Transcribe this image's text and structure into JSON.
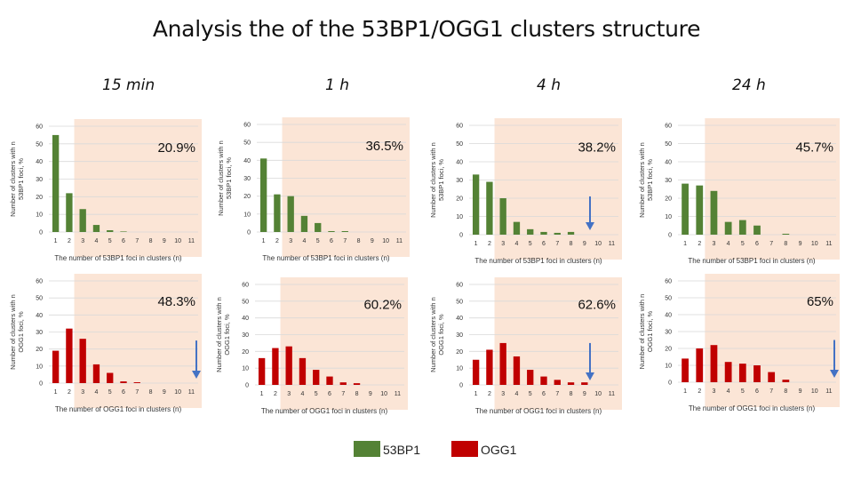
{
  "title": "Analysis the of the 53BP1/OGG1 clusters structure",
  "time_labels": [
    "15 min",
    "1 h",
    "4 h",
    "24 h"
  ],
  "legend": {
    "green": "53BP1",
    "red": "OGG1"
  },
  "colors": {
    "green": "#548235",
    "red": "#c00000",
    "shade": "#fbe5d6",
    "grid": "#d9d9d9",
    "arrow": "#4472c4"
  },
  "chart_data": [
    {
      "type": "bar",
      "series": "53BP1",
      "time": "15 min",
      "categories": [
        "1",
        "2",
        "3",
        "4",
        "5",
        "6",
        "7",
        "8",
        "9",
        "10",
        "11"
      ],
      "values": [
        55,
        22,
        13,
        4,
        1,
        0.3,
        0,
        0,
        0,
        0,
        0
      ],
      "ylabel": "Number of clusters with n 53BP1 foci, %",
      "xlabel": "The number of 53BP1 foci in clusters (n)",
      "yticks": [
        0,
        10,
        20,
        30,
        40,
        50,
        60
      ],
      "ylim": [
        0,
        60
      ],
      "shaded_from": "3",
      "annotation": "20.9%",
      "arrow": false
    },
    {
      "type": "bar",
      "series": "53BP1",
      "time": "1 h",
      "categories": [
        "1",
        "2",
        "3",
        "4",
        "5",
        "6",
        "7",
        "8",
        "9",
        "10",
        "11"
      ],
      "values": [
        41,
        21,
        20,
        9,
        5,
        0.5,
        0.5,
        0,
        0,
        0,
        0
      ],
      "ylabel": "Number of clusters with n 53BP1 foci, %",
      "xlabel": "The number of 53BP1 foci in clusters (n)",
      "yticks": [
        0,
        10,
        20,
        30,
        40,
        50,
        60
      ],
      "ylim": [
        0,
        60
      ],
      "shaded_from": "3",
      "annotation": "36.5%",
      "arrow": false
    },
    {
      "type": "bar",
      "series": "53BP1",
      "time": "4 h",
      "categories": [
        "1",
        "2",
        "3",
        "4",
        "5",
        "6",
        "7",
        "8",
        "9",
        "10",
        "11"
      ],
      "values": [
        33,
        29,
        20,
        7,
        3,
        1.5,
        1,
        1.5,
        0,
        0,
        0
      ],
      "ylabel": "Number of clusters with n 53BP1 foci, %",
      "xlabel": "The number of 53BP1 foci in clusters (n)",
      "yticks": [
        0,
        10,
        20,
        30,
        40,
        50,
        60
      ],
      "ylim": [
        0,
        60
      ],
      "shaded_from": "3",
      "annotation": "38.2%",
      "arrow": true
    },
    {
      "type": "bar",
      "series": "53BP1",
      "time": "24 h",
      "categories": [
        "1",
        "2",
        "3",
        "4",
        "5",
        "6",
        "7",
        "8",
        "9",
        "10",
        "11"
      ],
      "values": [
        28,
        27,
        24,
        7,
        8,
        5,
        0,
        0.5,
        0,
        0,
        0
      ],
      "ylabel": "Number of clusters with n 53BP1 foci, %",
      "xlabel": "The number of 53BP1 foci in clusters (n)",
      "yticks": [
        0,
        10,
        20,
        30,
        40,
        50,
        60
      ],
      "ylim": [
        0,
        60
      ],
      "shaded_from": "3",
      "annotation": "45.7%",
      "arrow": false
    },
    {
      "type": "bar",
      "series": "OGG1",
      "time": "15 min",
      "categories": [
        "1",
        "2",
        "3",
        "4",
        "5",
        "6",
        "7",
        "8",
        "9",
        "10",
        "11"
      ],
      "values": [
        19,
        32,
        26,
        11,
        6,
        1,
        0.5,
        0,
        0,
        0,
        0
      ],
      "ylabel": "Number of clusters with n OGG1 foci, %",
      "xlabel": "The number of OGG1 foci in clusters (n)",
      "yticks": [
        0,
        10,
        20,
        30,
        40,
        50,
        60
      ],
      "ylim": [
        0,
        60
      ],
      "shaded_from": "3",
      "annotation": "48.3%",
      "arrow": true
    },
    {
      "type": "bar",
      "series": "OGG1",
      "time": "1 h",
      "categories": [
        "1",
        "2",
        "3",
        "4",
        "5",
        "6",
        "7",
        "8",
        "9",
        "10",
        "11"
      ],
      "values": [
        16,
        22,
        23,
        16,
        9,
        5,
        1.5,
        1,
        0,
        0,
        0
      ],
      "ylabel": "Number of clusters with n OGG1 foci, %",
      "xlabel": "The number of OGG1 foci in clusters (n)",
      "yticks": [
        0,
        10,
        20,
        30,
        40,
        50,
        60
      ],
      "ylim": [
        0,
        60
      ],
      "shaded_from": "3",
      "annotation": "60.2%",
      "arrow": false
    },
    {
      "type": "bar",
      "series": "OGG1",
      "time": "4 h",
      "categories": [
        "1",
        "2",
        "3",
        "4",
        "5",
        "6",
        "7",
        "8",
        "9",
        "10",
        "11"
      ],
      "values": [
        15,
        21,
        25,
        17,
        9,
        5,
        3,
        1.5,
        1.5,
        0,
        0
      ],
      "ylabel": "Number of clusters with n OGG1 foci, %",
      "xlabel": "The number of OGG1 foci in clusters (n)",
      "yticks": [
        0,
        10,
        20,
        30,
        40,
        50,
        60
      ],
      "ylim": [
        0,
        60
      ],
      "shaded_from": "3",
      "annotation": "62.6%",
      "arrow": true
    },
    {
      "type": "bar",
      "series": "OGG1",
      "time": "24 h",
      "categories": [
        "1",
        "2",
        "3",
        "4",
        "5",
        "6",
        "7",
        "8",
        "9",
        "10",
        "11"
      ],
      "values": [
        14,
        20,
        22,
        12,
        11,
        10,
        6,
        1.5,
        0,
        0,
        0
      ],
      "ylabel": "Number of clusters with n OGG1 foci, %",
      "xlabel": "The number of OGG1 foci in clusters (n)",
      "yticks": [
        0,
        10,
        20,
        30,
        40,
        50,
        60
      ],
      "ylim": [
        0,
        60
      ],
      "shaded_from": "3",
      "annotation": "65%",
      "arrow": true
    }
  ]
}
